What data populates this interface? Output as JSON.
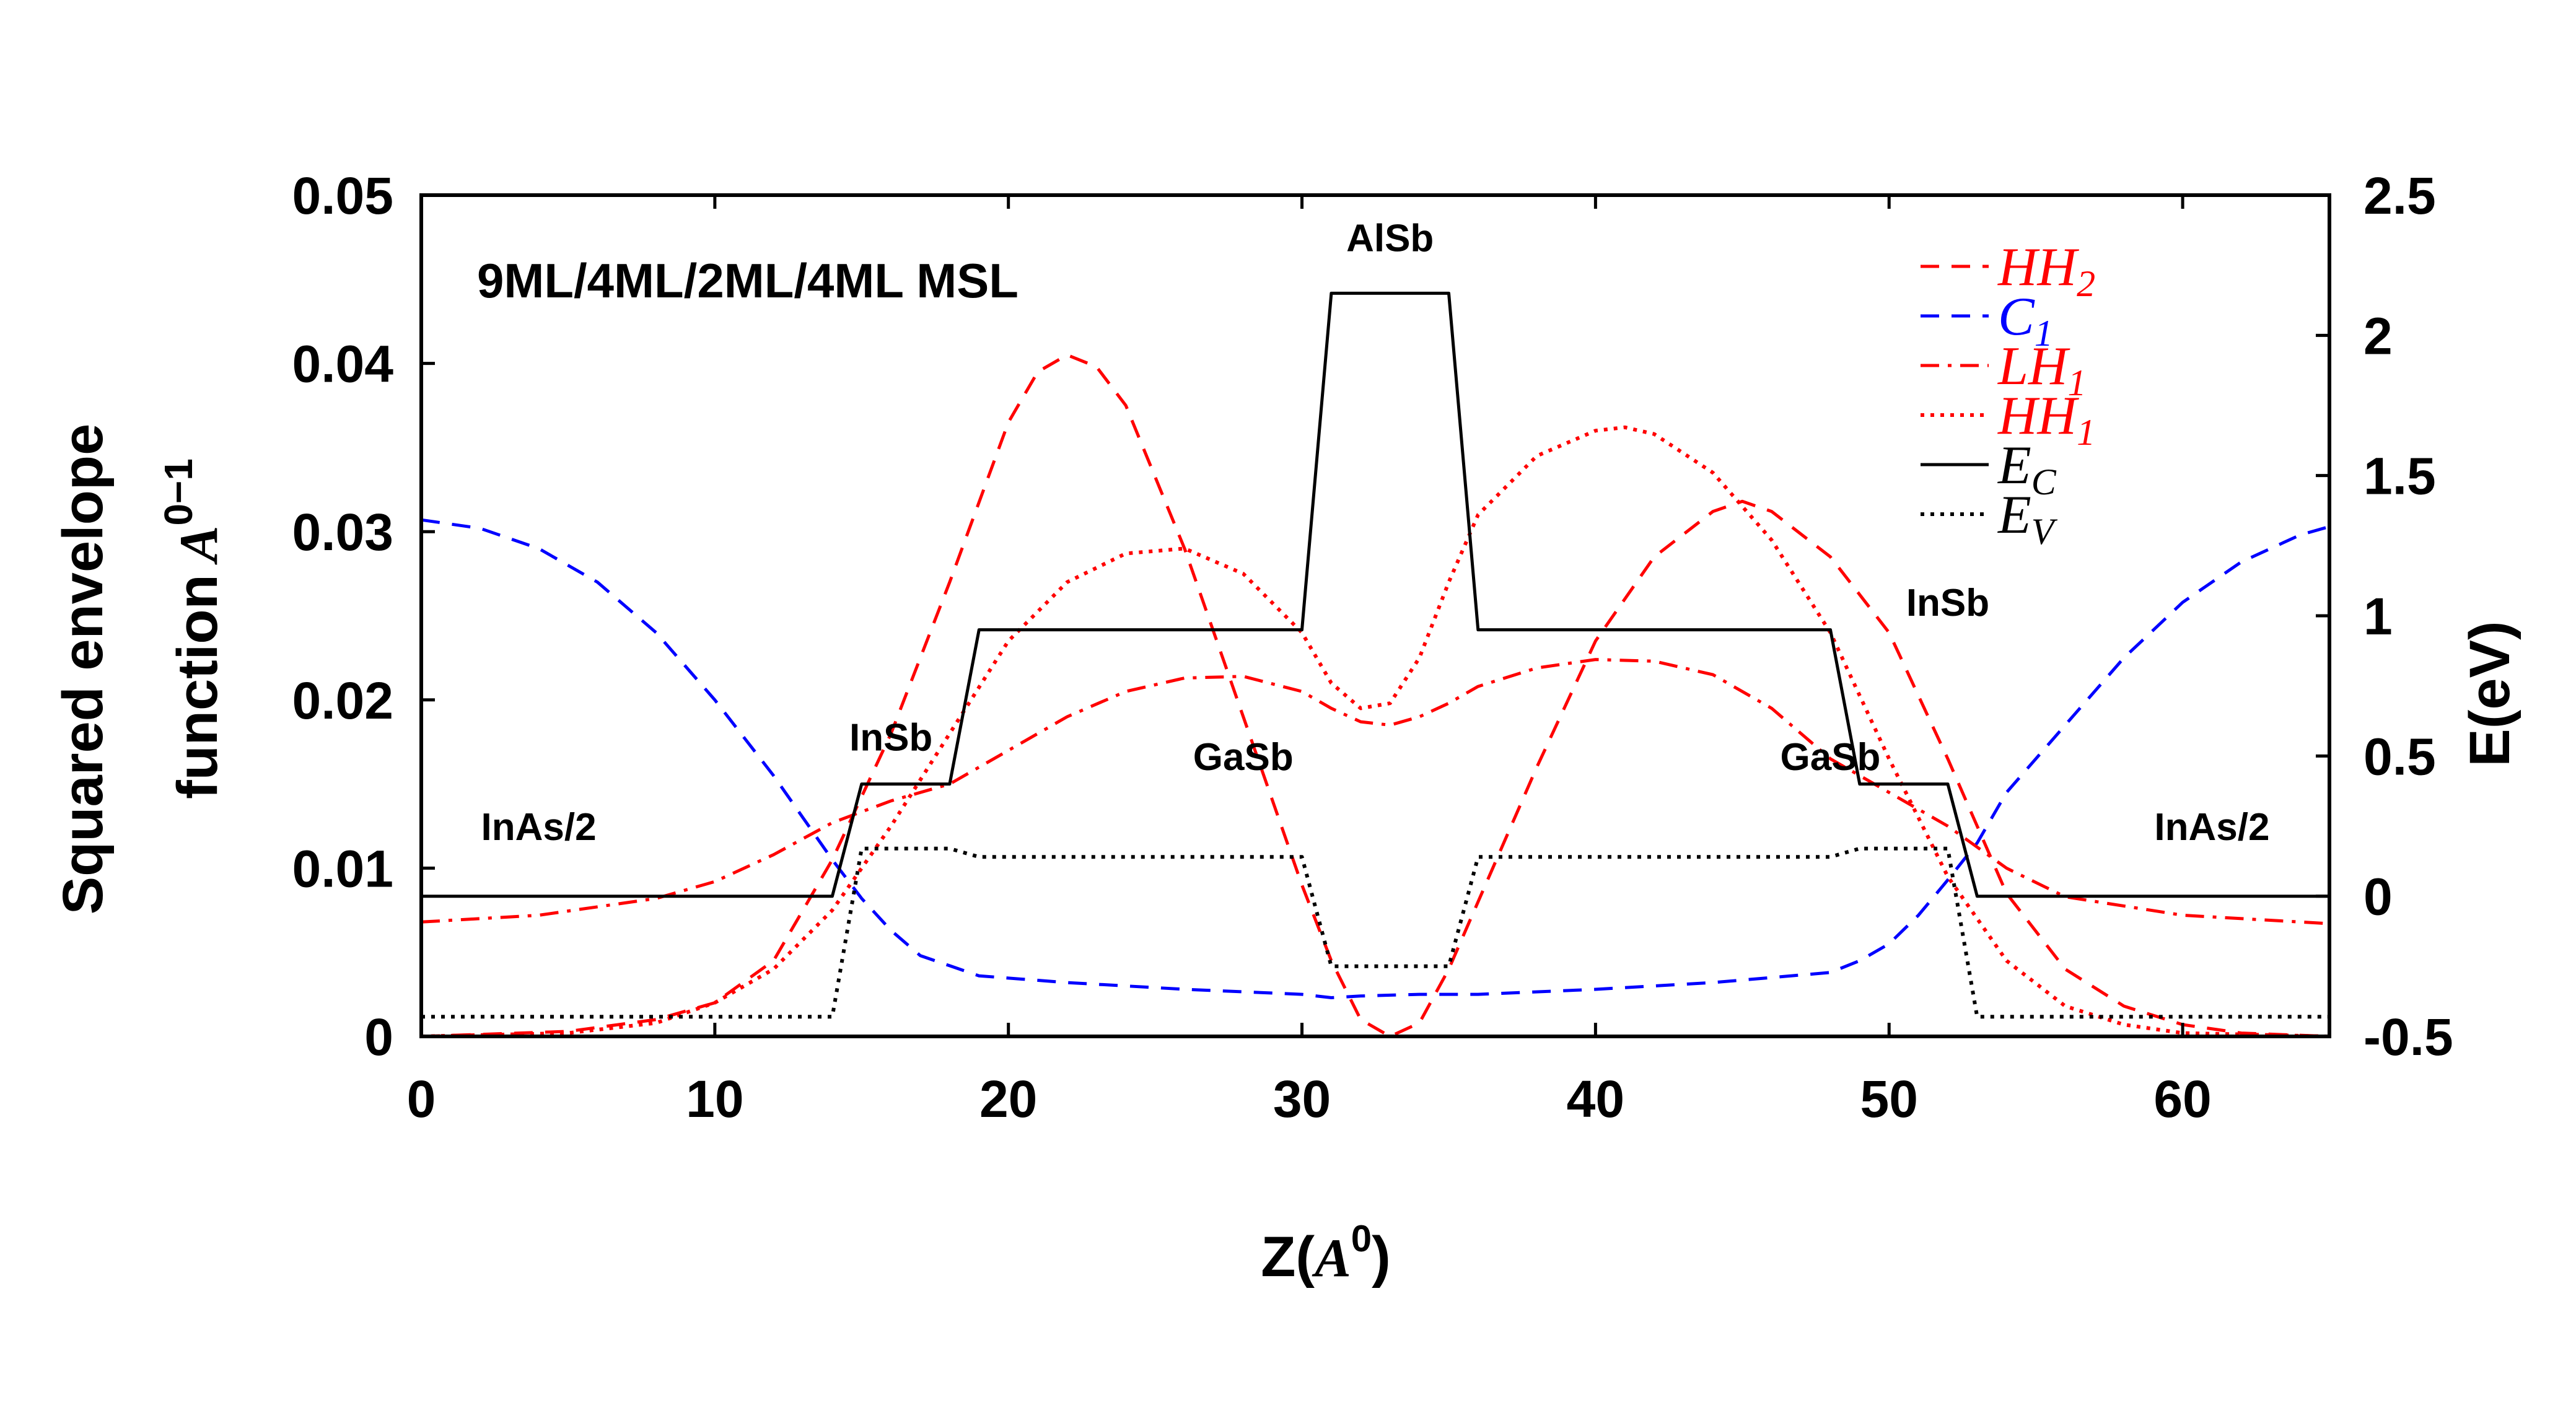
{
  "chart_data": {
    "type": "line",
    "annotation": "9ML/4ML/2ML/4ML MSL",
    "xlabel": "Z(A0)",
    "xlabel_main": "Z(",
    "xlabel_italic": "A",
    "xlabel_sup": "0",
    "xlabel_close": ")",
    "ylabel_left_line1": "Squared envelope",
    "ylabel_left_line2": "function",
    "ylabel_left_italic": "A",
    "ylabel_left_sup": "0−1",
    "ylabel_right": "E(eV)",
    "xlim": [
      0,
      65
    ],
    "ylim_left": [
      0,
      0.05
    ],
    "ylim_right": [
      -0.5,
      2.5
    ],
    "x_ticks": [
      "0",
      "10",
      "20",
      "30",
      "40",
      "50",
      "60"
    ],
    "y_left_ticks": [
      "0",
      "0.01",
      "0.02",
      "0.03",
      "0.04",
      "0.05"
    ],
    "y_right_ticks": [
      "-0.5",
      "0",
      "0.5",
      "1",
      "1.5",
      "2",
      "2.5"
    ],
    "regions": [
      {
        "label": "InAs/2",
        "x": 4,
        "e": 0.2
      },
      {
        "label": "InSb",
        "x": 16,
        "e": 0.52
      },
      {
        "label": "GaSb",
        "x": 28,
        "e": 0.45
      },
      {
        "label": "AlSb",
        "x": 33,
        "e": 2.3
      },
      {
        "label": "GaSb",
        "x": 48,
        "e": 0.45
      },
      {
        "label": "InSb",
        "x": 52,
        "e": 1.0
      },
      {
        "label": "InAs/2",
        "x": 61,
        "e": 0.2
      }
    ],
    "series": [
      {
        "name": "HH2",
        "legend_main": "HH",
        "legend_sub": "2",
        "color": "#ff0000",
        "dash": "dashed",
        "axis": "left",
        "x": [
          0,
          5,
          8,
          10,
          12,
          14,
          16,
          18,
          20,
          21,
          22,
          23,
          24,
          26,
          28,
          30,
          31,
          32,
          33,
          34,
          35,
          36,
          38,
          40,
          42,
          44,
          45,
          46,
          48,
          50,
          52,
          54,
          56,
          58,
          60,
          62,
          65
        ],
        "y": [
          0,
          0.0003,
          0.001,
          0.002,
          0.0045,
          0.0105,
          0.018,
          0.027,
          0.0365,
          0.0395,
          0.0405,
          0.0398,
          0.0375,
          0.029,
          0.019,
          0.009,
          0.0045,
          0.001,
          0,
          0.0008,
          0.004,
          0.008,
          0.016,
          0.0235,
          0.0285,
          0.0312,
          0.0318,
          0.0312,
          0.0285,
          0.024,
          0.0165,
          0.0085,
          0.004,
          0.0018,
          0.0007,
          0.0002,
          0
        ]
      },
      {
        "name": "C1",
        "legend_main": "C",
        "legend_sub": "1",
        "color": "#0000ff",
        "dash": "dashed",
        "axis": "left",
        "x": [
          0,
          2,
          4,
          6,
          8,
          10,
          12,
          13,
          14,
          15,
          16,
          17,
          18,
          19,
          22,
          26,
          30,
          31,
          32,
          34,
          36,
          40,
          44,
          48,
          49,
          50,
          51,
          52,
          53,
          54,
          56,
          58,
          60,
          62,
          64,
          65
        ],
        "y": [
          0.0307,
          0.0302,
          0.029,
          0.027,
          0.024,
          0.02,
          0.0155,
          0.013,
          0.0105,
          0.0082,
          0.0063,
          0.0048,
          0.0042,
          0.0036,
          0.0032,
          0.0028,
          0.0025,
          0.0023,
          0.0024,
          0.0025,
          0.0025,
          0.0028,
          0.0032,
          0.0038,
          0.0045,
          0.0055,
          0.0072,
          0.0093,
          0.0115,
          0.0145,
          0.0185,
          0.0225,
          0.0258,
          0.0282,
          0.0298,
          0.0303
        ]
      },
      {
        "name": "LH1",
        "legend_main": "LH",
        "legend_sub": "1",
        "color": "#ff0000",
        "dash": "dashdot",
        "axis": "left",
        "x": [
          0,
          4,
          8,
          10,
          12,
          14,
          16,
          18,
          20,
          22,
          24,
          26,
          28,
          30,
          31,
          32,
          33,
          34,
          35,
          36,
          38,
          40,
          42,
          44,
          46,
          48,
          50,
          52,
          54,
          56,
          60,
          65
        ],
        "y": [
          0.0068,
          0.0072,
          0.0082,
          0.0092,
          0.0108,
          0.0127,
          0.014,
          0.015,
          0.017,
          0.019,
          0.0205,
          0.0213,
          0.0214,
          0.0205,
          0.0195,
          0.0187,
          0.0185,
          0.019,
          0.0198,
          0.0208,
          0.0219,
          0.0224,
          0.0223,
          0.0215,
          0.0195,
          0.0165,
          0.0145,
          0.0125,
          0.01,
          0.0083,
          0.0072,
          0.0067
        ]
      },
      {
        "name": "HH1",
        "legend_main": "HH",
        "legend_sub": "1",
        "color": "#ff0000",
        "dash": "dotted",
        "axis": "left",
        "x": [
          0,
          5,
          8,
          10,
          12,
          14,
          16,
          18,
          20,
          22,
          24,
          26,
          28,
          30,
          31,
          32,
          33,
          34,
          35,
          36,
          38,
          40,
          41,
          42,
          44,
          46,
          48,
          50,
          52,
          54,
          56,
          58,
          60,
          65
        ],
        "y": [
          0,
          0.0002,
          0.0008,
          0.002,
          0.004,
          0.0075,
          0.0125,
          0.018,
          0.0235,
          0.027,
          0.0287,
          0.029,
          0.0275,
          0.024,
          0.021,
          0.0195,
          0.0198,
          0.0225,
          0.027,
          0.031,
          0.0345,
          0.036,
          0.0362,
          0.0358,
          0.0335,
          0.0295,
          0.024,
          0.0165,
          0.0095,
          0.0045,
          0.0018,
          0.0007,
          0.0002,
          0
        ]
      },
      {
        "name": "EC",
        "legend_main": "E",
        "legend_sub": "C",
        "color": "#000000",
        "dash": "solid",
        "axis": "right",
        "x": [
          0,
          14,
          15,
          18,
          19,
          30,
          31,
          35,
          36,
          48,
          49,
          52,
          53,
          65
        ],
        "y": [
          0,
          0,
          0.4,
          0.4,
          0.95,
          0.95,
          2.15,
          2.15,
          0.95,
          0.95,
          0.4,
          0.4,
          0,
          0
        ]
      },
      {
        "name": "EV",
        "legend_main": "E",
        "legend_sub": "V",
        "color": "#000000",
        "dash": "dotted",
        "axis": "right",
        "x": [
          0,
          14,
          15,
          18,
          19,
          30,
          31,
          35,
          36,
          48,
          49,
          52,
          53,
          65
        ],
        "y": [
          -0.43,
          -0.43,
          0.17,
          0.17,
          0.14,
          0.14,
          -0.25,
          -0.25,
          0.14,
          0.14,
          0.17,
          0.17,
          -0.43,
          -0.43
        ]
      }
    ]
  }
}
